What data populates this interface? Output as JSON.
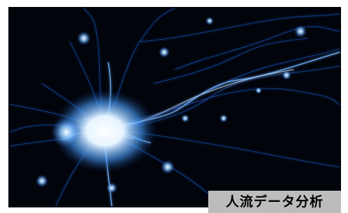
{
  "caption": "人流データ分析"
}
